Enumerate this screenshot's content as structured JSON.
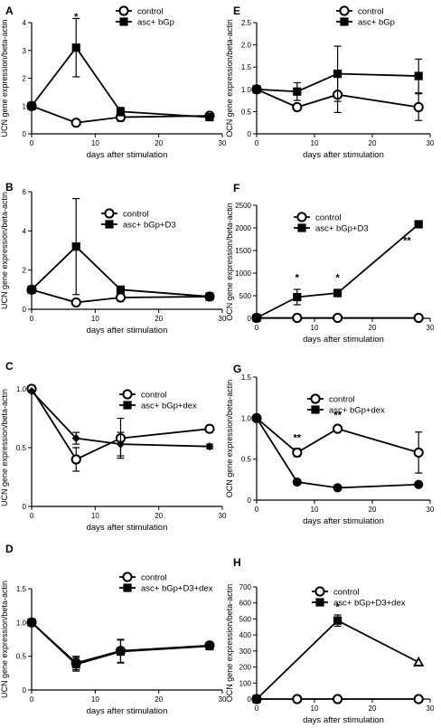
{
  "chart_data": [
    {
      "panel": "A",
      "type": "line",
      "xlabel": "days after stimulation",
      "ylabel": "UCN gene expression/beta-actin",
      "xlim": [
        0,
        30
      ],
      "ylim": [
        0,
        4
      ],
      "xticks": [
        0,
        10,
        20,
        30
      ],
      "yticks": [
        0,
        1,
        2,
        3,
        4
      ],
      "ytick_labels": [
        "0",
        "1",
        "2",
        "3",
        "4"
      ],
      "legend": "top-right",
      "series": [
        {
          "name": "control",
          "marker": "open-circle",
          "x": [
            0,
            7,
            14,
            28
          ],
          "y": [
            1.0,
            0.4,
            0.6,
            0.65
          ],
          "err": [
            0,
            0.05,
            0.15,
            0.08
          ]
        },
        {
          "name": "asc+ bGp",
          "marker": "filled-square",
          "x": [
            0,
            7,
            14,
            28
          ],
          "y": [
            1.0,
            3.1,
            0.8,
            0.6
          ],
          "err": [
            0,
            1.05,
            0.15,
            0.1
          ]
        }
      ],
      "annotations": [
        {
          "x": 7,
          "y": 4.1,
          "text": "*"
        }
      ]
    },
    {
      "panel": "B",
      "type": "line",
      "xlabel": "days after stimulation",
      "ylabel": "UCN gene expression/beta-actin",
      "xlim": [
        0,
        30
      ],
      "ylim": [
        0,
        6
      ],
      "xticks": [
        0,
        10,
        20,
        30
      ],
      "yticks": [
        0,
        2,
        4,
        6
      ],
      "ytick_labels": [
        "0",
        "2",
        "4",
        "6"
      ],
      "legend": "top-right",
      "series": [
        {
          "name": "control",
          "marker": "open-circle",
          "x": [
            0,
            7,
            14,
            28
          ],
          "y": [
            1.0,
            0.35,
            0.6,
            0.65
          ],
          "err": [
            0,
            0.1,
            0.1,
            0.05
          ]
        },
        {
          "name": "asc+ bGp+D3",
          "marker": "filled-square",
          "x": [
            0,
            7,
            14,
            28
          ],
          "y": [
            1.0,
            3.2,
            1.0,
            0.65
          ],
          "err": [
            0,
            2.45,
            0.1,
            0.05
          ]
        }
      ],
      "annotations": []
    },
    {
      "panel": "C",
      "type": "line",
      "xlabel": "days after stimulation",
      "ylabel": "UCN gene expression/beta-actin",
      "xlim": [
        0,
        30
      ],
      "ylim": [
        0,
        1
      ],
      "xticks": [
        0,
        10,
        20,
        30
      ],
      "yticks": [
        0,
        0.5,
        1
      ],
      "ytick_labels": [
        "0",
        "0.5",
        "1.0"
      ],
      "legend": "top-right",
      "series": [
        {
          "name": "control",
          "marker": "open-circle",
          "x": [
            0,
            7,
            14,
            28
          ],
          "y": [
            1.0,
            0.4,
            0.58,
            0.66
          ],
          "err": [
            0,
            0.1,
            0.17,
            0.03
          ]
        },
        {
          "name": "asc+ bGp+dex",
          "marker": "filled-diamond",
          "x": [
            0,
            7,
            14,
            28
          ],
          "y": [
            0.98,
            0.58,
            0.53,
            0.51
          ],
          "err": [
            0,
            0.05,
            0.1,
            0.02
          ]
        }
      ],
      "annotations": []
    },
    {
      "panel": "D",
      "type": "line",
      "xlabel": "days after stimulation",
      "ylabel": "UCN gene expression/beta-actin",
      "xlim": [
        0,
        30
      ],
      "ylim": [
        0,
        1.5
      ],
      "xticks": [
        0,
        10,
        20,
        30
      ],
      "yticks": [
        0,
        0.5,
        1,
        1.5
      ],
      "ytick_labels": [
        "0",
        "0.5",
        "1.0",
        "1.5"
      ],
      "legend": "top-right",
      "series": [
        {
          "name": "control",
          "marker": "open-circle",
          "x": [
            0,
            7,
            14,
            28
          ],
          "y": [
            1.0,
            0.4,
            0.58,
            0.66
          ],
          "err": [
            0,
            0.1,
            0.17,
            0.03
          ]
        },
        {
          "name": "asc+ bGp+D3+dex",
          "marker": "filled-square",
          "x": [
            0,
            7,
            14,
            28
          ],
          "y": [
            1.0,
            0.38,
            0.57,
            0.65
          ],
          "err": [
            0,
            0.1,
            0.17,
            0.03
          ]
        }
      ],
      "annotations": []
    },
    {
      "panel": "E",
      "type": "line",
      "xlabel": "days after stimulation",
      "ylabel": "OCN gene expression/beta-actin",
      "xlim": [
        0,
        30
      ],
      "ylim": [
        0,
        2.5
      ],
      "xticks": [
        0,
        10,
        20,
        30
      ],
      "yticks": [
        0,
        0.5,
        1,
        1.5,
        2,
        2.5
      ],
      "ytick_labels": [
        "0",
        "0.5",
        "1.0",
        "1.5",
        "2.0",
        "2.5"
      ],
      "legend": "top-right",
      "series": [
        {
          "name": "control",
          "marker": "open-circle",
          "x": [
            0,
            7,
            14,
            28
          ],
          "y": [
            1.0,
            0.6,
            0.88,
            0.6
          ],
          "err": [
            0.05,
            0.05,
            0.4,
            0.3
          ]
        },
        {
          "name": "asc+ bGp",
          "marker": "filled-square",
          "x": [
            0,
            7,
            14,
            28
          ],
          "y": [
            1.0,
            0.95,
            1.35,
            1.3
          ],
          "err": [
            0.05,
            0.2,
            0.62,
            0.38
          ]
        }
      ],
      "annotations": []
    },
    {
      "panel": "F",
      "type": "line",
      "xlabel": "days after stimulation",
      "ylabel": "OCN gene expression/beta-actin",
      "xlim": [
        0,
        30
      ],
      "ylim": [
        0,
        2500
      ],
      "xticks": [
        0,
        10,
        20,
        30
      ],
      "yticks": [
        0,
        500,
        1000,
        1500,
        2000,
        2500
      ],
      "ytick_labels": [
        "0",
        "500",
        "1000",
        "1500",
        "2000",
        "2500"
      ],
      "legend": "top-left",
      "series": [
        {
          "name": "control",
          "marker": "open-circle",
          "x": [
            0,
            7,
            14,
            28
          ],
          "y": [
            10,
            10,
            10,
            10
          ],
          "err": [
            0,
            0,
            0,
            0
          ]
        },
        {
          "name": "asc+ bGp+D3",
          "marker": "filled-square",
          "x": [
            0,
            7,
            14,
            28
          ],
          "y": [
            10,
            470,
            560,
            2080
          ],
          "err": [
            0,
            170,
            80,
            20
          ]
        }
      ],
      "annotations": [
        {
          "x": 7,
          "y": 830,
          "text": "*"
        },
        {
          "x": 14,
          "y": 830,
          "text": "*"
        },
        {
          "x": 26,
          "y": 1650,
          "text": "**"
        }
      ]
    },
    {
      "panel": "G",
      "type": "line",
      "xlabel": "days after stimulation",
      "ylabel": "OCN gene expression/beta-actin",
      "xlim": [
        0,
        30
      ],
      "ylim": [
        0,
        1.5
      ],
      "xticks": [
        0,
        10,
        20,
        30
      ],
      "yticks": [
        0,
        0.5,
        1,
        1.5
      ],
      "ytick_labels": [
        "0",
        "0.5",
        "1.0",
        "1.5"
      ],
      "legend": "top-right",
      "series": [
        {
          "name": "control",
          "marker": "open-circle",
          "x": [
            0,
            7,
            14,
            28
          ],
          "y": [
            1.0,
            0.58,
            0.87,
            0.58
          ],
          "err": [
            0,
            0.05,
            0.03,
            0.25
          ]
        },
        {
          "name": "asc+ bGp+dex",
          "marker": "filled-circle",
          "x": [
            0,
            7,
            14,
            28
          ],
          "y": [
            1.0,
            0.22,
            0.15,
            0.19
          ],
          "err": [
            0,
            0.02,
            0.02,
            0.02
          ]
        }
      ],
      "annotations": [
        {
          "x": 7,
          "y": 0.72,
          "text": "**"
        },
        {
          "x": 14,
          "y": 1.0,
          "text": "**"
        }
      ]
    },
    {
      "panel": "H",
      "type": "line",
      "xlabel": "days after stimulation",
      "ylabel": "OCN gene expression/beta-actin",
      "xlim": [
        0,
        30
      ],
      "ylim": [
        0,
        700
      ],
      "xticks": [
        0,
        10,
        20,
        30
      ],
      "yticks": [
        0,
        100,
        200,
        300,
        400,
        500,
        600,
        700
      ],
      "ytick_labels": [
        "0",
        "100",
        "200",
        "300",
        "400",
        "500",
        "600",
        "700"
      ],
      "legend": "top-left",
      "series": [
        {
          "name": "control",
          "marker": "open-circle",
          "x": [
            0,
            7,
            14,
            28
          ],
          "y": [
            0,
            0,
            0,
            0
          ],
          "err": [
            0,
            0,
            0,
            0
          ]
        },
        {
          "name": "asc+ bGp+D3+dex",
          "marker": "filled-square",
          "x": [
            0,
            14,
            28
          ],
          "y": [
            0,
            490,
            230
          ],
          "err": [
            0,
            35,
            0
          ],
          "end_marker": "open-triangle"
        }
      ],
      "annotations": [
        {
          "x": 14,
          "y": 555,
          "text": "*"
        }
      ]
    }
  ]
}
